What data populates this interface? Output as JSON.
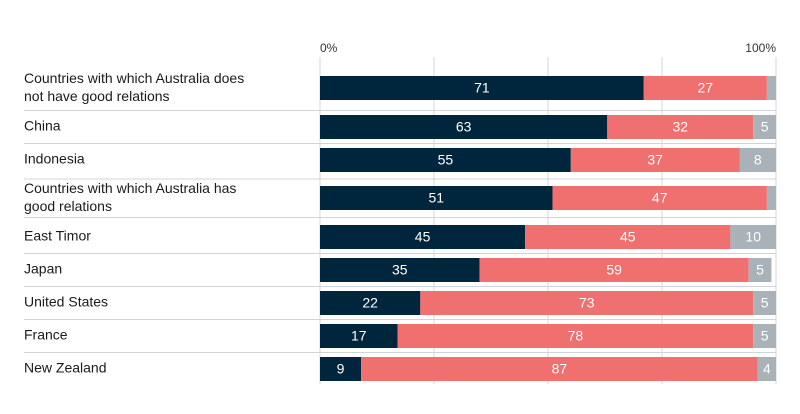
{
  "chart_data": {
    "type": "bar",
    "orientation": "horizontal-stacked-100",
    "axis_ticks": [
      "0%",
      "100%"
    ],
    "xlim": [
      0,
      100
    ],
    "colors": {
      "series0": "#00263e",
      "series1": "#f07070",
      "series2": "#a8b2b8",
      "grid": "#d0d4d8"
    },
    "categories": [
      "Countries with which Australia does not have good relations",
      "China",
      "Indonesia",
      "Countries with which Australia has good relations",
      "East Timor",
      "Japan",
      "United States",
      "France",
      "New Zealand"
    ],
    "series": [
      {
        "name": "",
        "values": [
          71,
          63,
          55,
          51,
          45,
          35,
          22,
          17,
          9
        ]
      },
      {
        "name": "",
        "values": [
          27,
          32,
          37,
          47,
          45,
          59,
          73,
          78,
          87
        ]
      },
      {
        "name": "",
        "values": [
          2,
          5,
          8,
          2,
          10,
          5,
          5,
          5,
          4
        ]
      }
    ],
    "show_value_labels": [
      [
        true,
        true,
        true,
        true,
        true,
        true,
        true,
        true,
        true
      ],
      [
        true,
        true,
        true,
        true,
        true,
        true,
        true,
        true,
        true
      ],
      [
        false,
        true,
        true,
        false,
        true,
        true,
        true,
        true,
        true
      ]
    ]
  }
}
